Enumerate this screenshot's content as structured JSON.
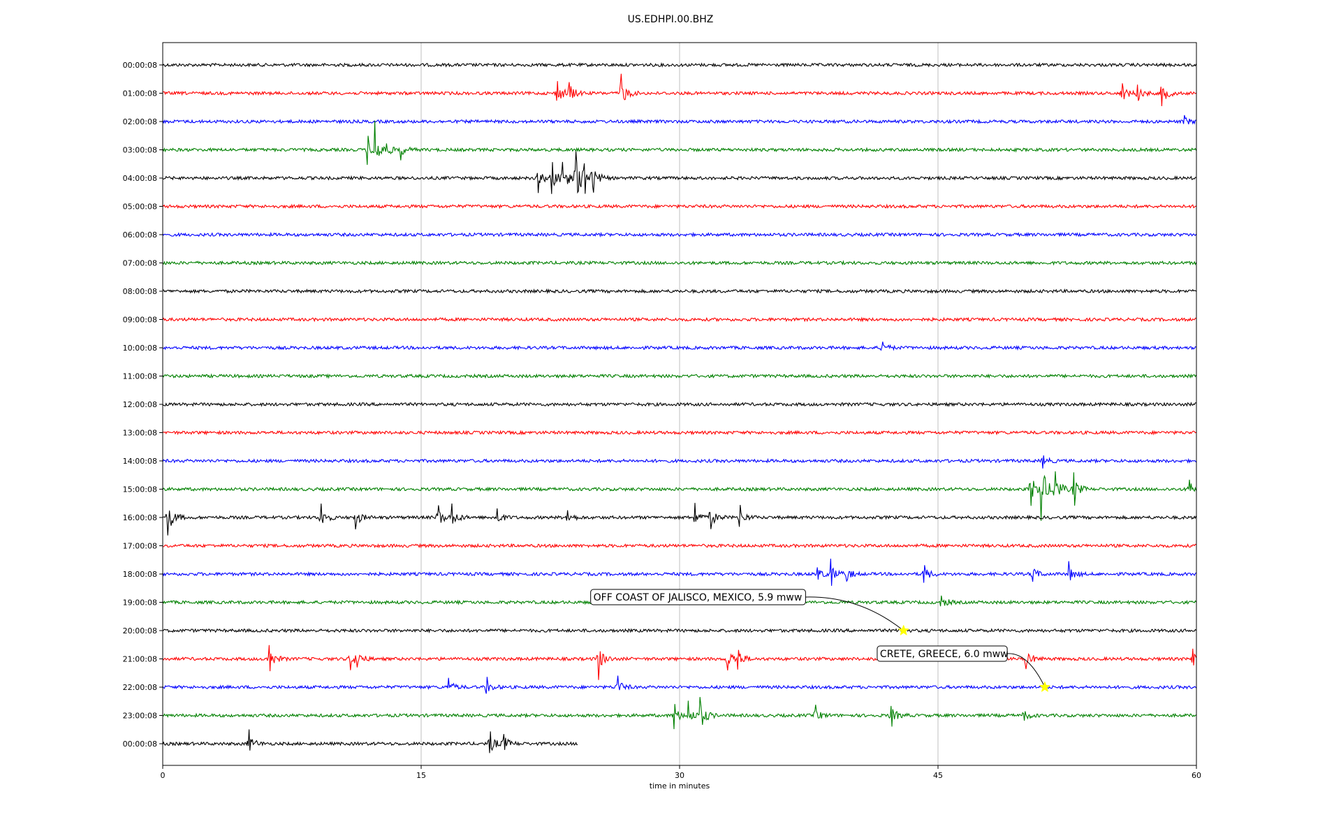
{
  "chart_data": {
    "type": "line",
    "title": "US.EDHPI.00.BHZ",
    "xlabel": "time in minutes",
    "ylabel": "",
    "xlim": [
      0,
      60
    ],
    "x_ticks": [
      0,
      15,
      30,
      45,
      60
    ],
    "grid": "vertical",
    "row_colors": [
      "#000000",
      "#ff0000",
      "#0000ff",
      "#008000"
    ],
    "rows": [
      {
        "label": "00:00:08",
        "color": "#000000",
        "events": []
      },
      {
        "label": "01:00:08",
        "color": "#ff0000",
        "events": [
          [
            22.9,
            1.2
          ],
          [
            23.6,
            1.0
          ],
          [
            26.6,
            1.6
          ],
          [
            55.7,
            0.9
          ],
          [
            56.6,
            0.7
          ],
          [
            58.0,
            1.2
          ]
        ]
      },
      {
        "label": "02:00:08",
        "color": "#0000ff",
        "events": [
          [
            59.3,
            0.5
          ]
        ]
      },
      {
        "label": "03:00:08",
        "color": "#008000",
        "events": [
          [
            11.9,
            1.0
          ],
          [
            12.3,
            2.2
          ],
          [
            13.0,
            0.6
          ],
          [
            13.8,
            0.7
          ]
        ]
      },
      {
        "label": "04:00:08",
        "color": "#000000",
        "events": [
          [
            21.8,
            1.0
          ],
          [
            22.6,
            1.4
          ],
          [
            23.2,
            1.4
          ],
          [
            24.0,
            2.6
          ],
          [
            24.5,
            1.2
          ],
          [
            25.0,
            1.0
          ]
        ]
      },
      {
        "label": "05:00:08",
        "color": "#ff0000",
        "events": []
      },
      {
        "label": "06:00:08",
        "color": "#0000ff",
        "events": []
      },
      {
        "label": "07:00:08",
        "color": "#008000",
        "events": []
      },
      {
        "label": "08:00:08",
        "color": "#000000",
        "events": []
      },
      {
        "label": "09:00:08",
        "color": "#ff0000",
        "events": []
      },
      {
        "label": "10:00:08",
        "color": "#0000ff",
        "events": [
          [
            41.8,
            0.5
          ]
        ]
      },
      {
        "label": "11:00:08",
        "color": "#008000",
        "events": []
      },
      {
        "label": "12:00:08",
        "color": "#000000",
        "events": []
      },
      {
        "label": "13:00:08",
        "color": "#ff0000",
        "events": []
      },
      {
        "label": "14:00:08",
        "color": "#0000ff",
        "events": [
          [
            51.1,
            0.5
          ]
        ]
      },
      {
        "label": "15:00:08",
        "color": "#008000",
        "events": [
          [
            50.4,
            1.6
          ],
          [
            51.0,
            2.6
          ],
          [
            51.8,
            1.6
          ],
          [
            52.9,
            1.2
          ],
          [
            59.6,
            0.9
          ]
        ]
      },
      {
        "label": "16:00:08",
        "color": "#000000",
        "events": [
          [
            0.3,
            1.8
          ],
          [
            9.2,
            1.0
          ],
          [
            11.2,
            0.9
          ],
          [
            16.0,
            1.0
          ],
          [
            16.8,
            1.0
          ],
          [
            19.4,
            0.7
          ],
          [
            23.5,
            0.6
          ],
          [
            30.9,
            1.1
          ],
          [
            31.8,
            1.0
          ],
          [
            33.5,
            0.9
          ]
        ]
      },
      {
        "label": "17:00:08",
        "color": "#ff0000",
        "events": []
      },
      {
        "label": "18:00:08",
        "color": "#0000ff",
        "events": [
          [
            38.0,
            0.7
          ],
          [
            38.8,
            1.0
          ],
          [
            39.7,
            0.7
          ],
          [
            44.2,
            0.8
          ],
          [
            50.5,
            0.7
          ],
          [
            52.6,
            0.9
          ]
        ]
      },
      {
        "label": "19:00:08",
        "color": "#008000",
        "events": [
          [
            45.2,
            0.7
          ]
        ]
      },
      {
        "label": "20:00:08",
        "color": "#000000",
        "events": []
      },
      {
        "label": "21:00:08",
        "color": "#ff0000",
        "events": [
          [
            6.2,
            1.1
          ],
          [
            10.9,
            0.8
          ],
          [
            11.3,
            0.7
          ],
          [
            25.3,
            1.4
          ],
          [
            32.8,
            1.2
          ],
          [
            33.4,
            0.9
          ],
          [
            50.1,
            1.1
          ],
          [
            59.8,
            0.9
          ]
        ]
      },
      {
        "label": "22:00:08",
        "color": "#0000ff",
        "events": [
          [
            16.6,
            0.7
          ],
          [
            18.8,
            0.7
          ],
          [
            26.4,
            0.8
          ]
        ]
      },
      {
        "label": "23:00:08",
        "color": "#008000",
        "events": [
          [
            29.7,
            0.9
          ],
          [
            30.5,
            1.0
          ],
          [
            31.2,
            1.6
          ],
          [
            37.9,
            0.7
          ],
          [
            42.3,
            0.9
          ],
          [
            50.0,
            0.5
          ]
        ]
      },
      {
        "label": "00:00:08",
        "color": "#000000",
        "events": [
          [
            5.0,
            1.0
          ],
          [
            19.0,
            1.0
          ],
          [
            19.8,
            0.8
          ]
        ],
        "end_minute": 24.1
      }
    ],
    "annotations": [
      {
        "text": "OFF COAST OF JALISCO, MEXICO, 5.9 mww",
        "row": 20,
        "minute": 43.0,
        "marker_color": "#ffff00"
      },
      {
        "text": "CRETE, GREECE, 6.0 mww",
        "row": 22,
        "minute": 51.2,
        "marker_color": "#ffff00"
      }
    ]
  }
}
